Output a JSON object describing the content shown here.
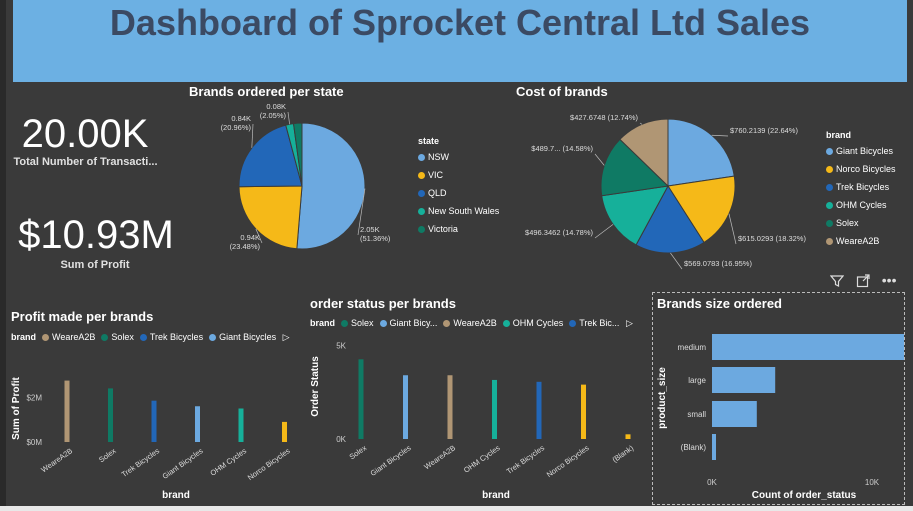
{
  "dashboard_title": "Dashboard of Sprocket Central Ltd Sales",
  "kpis": [
    {
      "value": "20.00K",
      "label": "Total Number of Transacti..."
    },
    {
      "value": "$10.93M",
      "label": "Sum of Profit"
    }
  ],
  "visual_icons": {
    "filter": "filter-icon",
    "focus": "focus-mode-icon",
    "more": "more-options-icon"
  },
  "more_options_glyph": "•••",
  "colors": {
    "Giant Bicycles": "#6ca9e0",
    "Norco Bicycles": "#f5b918",
    "Trek Bicycles": "#2267b8",
    "OHM Cycles": "#16b09a",
    "Solex": "#0f7a64",
    "WeareA2B": "#b09674",
    "NSW": "#6ca9e0",
    "VIC": "#f5b918",
    "QLD": "#2267b8",
    "New South Wales": "#16b09a",
    "Victoria": "#0f7a64"
  },
  "chart_data": [
    {
      "id": "state",
      "type": "pie",
      "title": "Brands ordered per state",
      "legend_title": "state",
      "legend_position": "right",
      "slices": [
        {
          "name": "NSW",
          "value": 2.05,
          "label1": "2.05K",
          "label2": "(51.36%)"
        },
        {
          "name": "VIC",
          "value": 0.94,
          "label1": "0.94K",
          "label2": "(23.48%)"
        },
        {
          "name": "QLD",
          "value": 0.84,
          "label1": "0.84K",
          "label2": "(20.96%)"
        },
        {
          "name": "New South Wales",
          "value": 0.08,
          "label1": "0.08K",
          "label2": "(2.05%)"
        },
        {
          "name": "Victoria",
          "value": 0.086,
          "label1": "",
          "label2": ""
        }
      ]
    },
    {
      "id": "cost",
      "type": "pie",
      "title": "Cost of brands",
      "legend_title": "brand",
      "legend_position": "right",
      "slices": [
        {
          "name": "Giant Bicycles",
          "value": 760.2139,
          "label1": "$760.2139 (22.64%)"
        },
        {
          "name": "Norco Bicycles",
          "value": 615.0293,
          "label1": "$615.0293 (18.32%)"
        },
        {
          "name": "Trek Bicycles",
          "value": 569.0783,
          "label1": "$569.0783 (16.95%)"
        },
        {
          "name": "OHM Cycles",
          "value": 496.3462,
          "label1": "$496.3462 (14.78%)"
        },
        {
          "name": "Solex",
          "value": 489.7,
          "label1": "$489.7... (14.58%)"
        },
        {
          "name": "WeareA2B",
          "value": 427.6748,
          "label1": "$427.6748 (12.74%)"
        }
      ]
    },
    {
      "id": "profit",
      "type": "bar",
      "title": "Profit made per brands",
      "legend_title": "brand",
      "legend_items": [
        "WeareA2B",
        "Solex",
        "Trek Bicycles",
        "Giant Bicycles"
      ],
      "xlabel": "brand",
      "ylabel": "Sum of Profit",
      "categories": [
        "WeareA2B",
        "Solex",
        "Trek Bicycles",
        "Giant Bicycles",
        "OHM Cycles",
        "Norco Bicycles"
      ],
      "values": [
        2.75,
        2.4,
        1.85,
        1.6,
        1.5,
        0.9
      ],
      "yticks": [
        {
          "v": 0,
          "label": "$0M"
        },
        {
          "v": 2,
          "label": "$2M"
        }
      ],
      "ylim": [
        0,
        3.0
      ]
    },
    {
      "id": "status",
      "type": "bar",
      "title": "order status per brands",
      "legend_title": "brand",
      "legend_items": [
        "Solex",
        "Giant Bicy...",
        "WeareA2B",
        "OHM Cycles",
        "Trek Bic..."
      ],
      "legend_colors": [
        "Solex",
        "Giant Bicycles",
        "WeareA2B",
        "OHM Cycles",
        "Trek Bicycles"
      ],
      "xlabel": "brand",
      "ylabel": "Order Status",
      "categories": [
        "Solex",
        "Giant Bicycles",
        "WeareA2B",
        "OHM Cycles",
        "Trek Bicycles",
        "Norco Bicycles",
        "(Blank)"
      ],
      "bar_colors": [
        "Solex",
        "Giant Bicycles",
        "WeareA2B",
        "OHM Cycles",
        "Trek Bicycles",
        "Norco Bicycles",
        "Norco Bicycles"
      ],
      "values": [
        4250,
        3400,
        3400,
        3150,
        3050,
        2900,
        250
      ],
      "yticks": [
        {
          "v": 0,
          "label": "0K"
        },
        {
          "v": 5000,
          "label": "5K"
        }
      ],
      "ylim": [
        0,
        5600
      ]
    },
    {
      "id": "size",
      "type": "bar",
      "orientation": "horizontal",
      "title": "Brands size ordered",
      "xlabel": "Count of order_status",
      "ylabel": "product_size",
      "categories": [
        "medium",
        "large",
        "small",
        "(Blank)"
      ],
      "values": [
        12900,
        3950,
        2800,
        250
      ],
      "xticks": [
        {
          "v": 0,
          "label": "0K"
        },
        {
          "v": 10000,
          "label": "10K"
        }
      ],
      "xlim": [
        0,
        14000
      ]
    }
  ]
}
